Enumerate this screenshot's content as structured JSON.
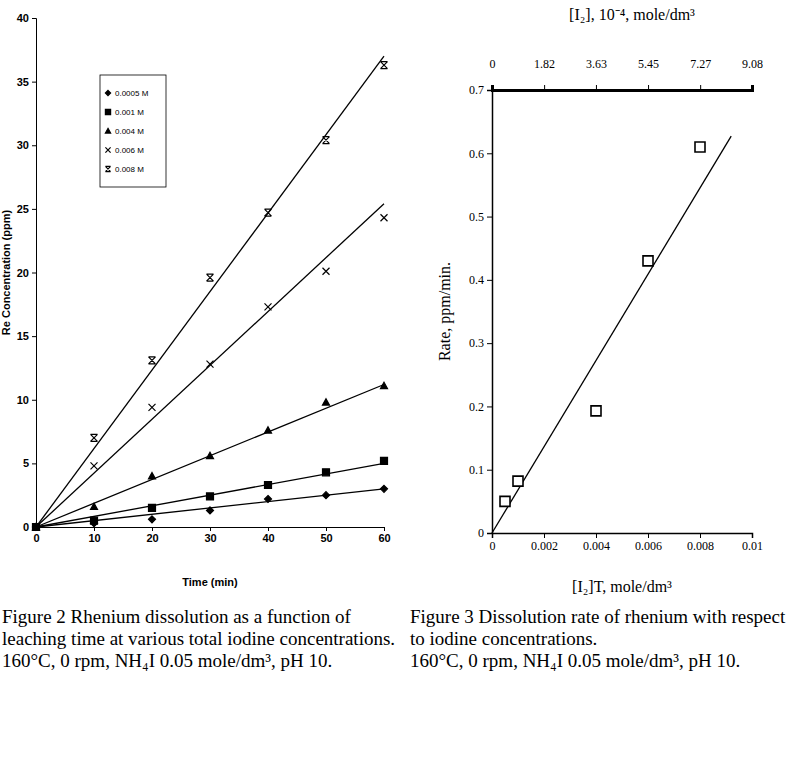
{
  "chart_data": [
    {
      "type": "scatter",
      "title": "Figure 2 Rhenium dissolution as a function of leaching time at various total iodine concentrations.",
      "subtitle": "160°C, 0 rpm, NH₄I 0.05 mole/dm³, pH 10.",
      "x_label": "Time (min)",
      "y_label": "Re Concentration (ppm)",
      "x": [
        0,
        10,
        20,
        30,
        40,
        50,
        60
      ],
      "xlim": [
        0,
        60
      ],
      "xticks": [
        0,
        10,
        20,
        30,
        40,
        50,
        60
      ],
      "ylim": [
        0,
        40
      ],
      "yticks": [
        0,
        5,
        10,
        15,
        20,
        25,
        30,
        35,
        40
      ],
      "legend": "upper left",
      "series": [
        {
          "name": "0.0005 M",
          "color": "#000000",
          "marker": "diamond",
          "values": [
            0,
            0.3,
            0.6,
            1.3,
            2.2,
            2.5,
            3.0
          ],
          "fit": {
            "x": [
              0,
              60
            ],
            "values": [
              0,
              3.0
            ]
          }
        },
        {
          "name": "0.001 M",
          "color": "#000000",
          "marker": "square",
          "values": [
            0,
            0.5,
            1.5,
            2.4,
            3.3,
            4.3,
            5.2
          ],
          "fit": {
            "x": [
              0,
              60
            ],
            "values": [
              0,
              5.0
            ]
          }
        },
        {
          "name": "0.004 M",
          "color": "#000000",
          "marker": "triangle",
          "values": [
            0,
            1.6,
            4.0,
            5.6,
            7.6,
            9.8,
            11.1
          ],
          "fit": {
            "x": [
              0,
              60
            ],
            "values": [
              0,
              11.2
            ]
          }
        },
        {
          "name": "0.006 M",
          "color": "#000000",
          "marker": "x",
          "values": [
            0,
            4.8,
            9.4,
            12.8,
            17.3,
            20.1,
            24.3
          ],
          "fit": {
            "x": [
              0,
              60
            ],
            "values": [
              0,
              25.4
            ]
          }
        },
        {
          "name": "0.008 M",
          "color": "#000000",
          "marker": "asterisk",
          "values": [
            0,
            7.0,
            13.1,
            19.6,
            24.7,
            30.4,
            36.3
          ],
          "fit": {
            "x": [
              0,
              60
            ],
            "values": [
              0,
              37.0
            ]
          }
        }
      ]
    },
    {
      "type": "scatter",
      "title": "Figure 3 Dissolution rate of rhenium with respect to iodine concentrations.",
      "subtitle": "160°C, 0 rpm, NH₄I 0.05 mole/dm³, pH 10.",
      "x_label": "[I₂]T,  mole/dm³",
      "x2_label": "[I₂],  10⁻⁴, mole/dm³",
      "y_label": "Rate,  ppm/min.",
      "xlim": [
        0,
        0.01
      ],
      "xticks": [
        0,
        0.002,
        0.004,
        0.006,
        0.008,
        0.01
      ],
      "x2lim": [
        0,
        9.08
      ],
      "x2ticks": [
        0,
        1.82,
        3.63,
        5.45,
        7.27,
        9.08
      ],
      "ylim": [
        0,
        0.7
      ],
      "yticks": [
        0,
        0.1,
        0.2,
        0.3,
        0.4,
        0.5,
        0.6,
        0.7
      ],
      "series": [
        {
          "color": "#000000",
          "marker": "square-open",
          "x": [
            0.0005,
            0.001,
            0.004,
            0.006,
            0.008
          ],
          "values": [
            0.05,
            0.082,
            0.193,
            0.43,
            0.61
          ],
          "fit": {
            "x": [
              0,
              0.0092
            ],
            "values": [
              0,
              0.627
            ]
          }
        }
      ]
    }
  ]
}
